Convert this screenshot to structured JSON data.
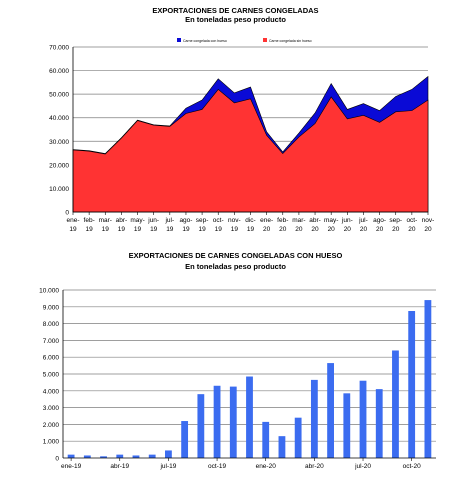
{
  "charts": {
    "top": {
      "title": "EXPORTACIONES DE CARNES CONGELADAS",
      "subtitle": "En toneladas peso producto"
    },
    "bottom": {
      "title": "EXPORTACIONES DE CARNES CONGELADAS CON HUESO",
      "subtitle": "En toneladas peso producto"
    }
  },
  "colors": {
    "total_fill": "#0a0ad6",
    "main_fill": "#ff3333",
    "bar_fill": "#3b6cf0",
    "grid": "#7f7f7f"
  },
  "chart_data": [
    {
      "type": "area",
      "title": "EXPORTACIONES DE CARNES CONGELADAS",
      "subtitle": "En toneladas peso producto",
      "categories_top": [
        "ene-",
        "feb-",
        "mar-",
        "abr-",
        "may-",
        "jun-",
        "jul-",
        "ago-",
        "sep-",
        "oct-",
        "nov-",
        "dic-",
        "ene-",
        "feb-",
        "mar-",
        "abr-",
        "may-",
        "jun-",
        "jul-",
        "ago-",
        "sep-",
        "oct-",
        "nov-"
      ],
      "categories_bottom": [
        "19",
        "19",
        "19",
        "19",
        "19",
        "19",
        "19",
        "19",
        "19",
        "19",
        "19",
        "19",
        "20",
        "20",
        "20",
        "20",
        "20",
        "20",
        "20",
        "20",
        "20",
        "20",
        "20"
      ],
      "ylim": [
        0,
        70000
      ],
      "yticks": [
        "0",
        "10.000",
        "20.000",
        "30.000",
        "40.000",
        "50.000",
        "60.000",
        "70.000"
      ],
      "grid": true,
      "legend_position": "top-center",
      "series": [
        {
          "name": "Carne congelada con hueso",
          "values": [
            26500,
            26000,
            24800,
            31500,
            39000,
            37000,
            36500,
            44000,
            47500,
            56500,
            50500,
            53000,
            34000,
            25500,
            33500,
            42000,
            54500,
            43500,
            46000,
            43000,
            49000,
            52000,
            57500
          ]
        },
        {
          "name": "Carne congelada sin hueso",
          "values": [
            26300,
            25800,
            24600,
            31300,
            38800,
            36800,
            36300,
            41800,
            43500,
            52000,
            46300,
            48000,
            32500,
            24800,
            31800,
            37500,
            48800,
            39500,
            41000,
            38000,
            42500,
            43000,
            47500
          ]
        }
      ]
    },
    {
      "type": "bar",
      "title": "EXPORTACIONES DE CARNES CONGELADAS CON HUESO",
      "subtitle": "En toneladas peso producto",
      "categories": [
        "ene-19",
        "feb-19",
        "mar-19",
        "abr-19",
        "may-19",
        "jun-19",
        "jul-19",
        "ago-19",
        "sep-19",
        "oct-19",
        "nov-19",
        "dic-19",
        "ene-20",
        "feb-20",
        "mar-20",
        "abr-20",
        "may-20",
        "jun-20",
        "jul-20",
        "ago-20",
        "sep-20",
        "oct-20",
        "nov-20"
      ],
      "xtick_labels": [
        "ene-19",
        "abr-19",
        "jul-19",
        "oct-19",
        "ene-20",
        "abr-20",
        "jul-20",
        "oct-20"
      ],
      "xtick_indices": [
        0,
        3,
        6,
        9,
        12,
        15,
        18,
        21
      ],
      "ylim": [
        0,
        10000
      ],
      "yticks": [
        "0",
        "1.000",
        "2.000",
        "3.000",
        "4.000",
        "5.000",
        "6.000",
        "7.000",
        "8.000",
        "9.000",
        "10.000"
      ],
      "grid": true,
      "series": [
        {
          "values": [
            200,
            150,
            100,
            200,
            150,
            200,
            450,
            2200,
            3800,
            4300,
            4250,
            4850,
            2150,
            1300,
            2400,
            4650,
            5650,
            3850,
            4600,
            4100,
            6400,
            8750,
            9400
          ]
        }
      ]
    }
  ]
}
